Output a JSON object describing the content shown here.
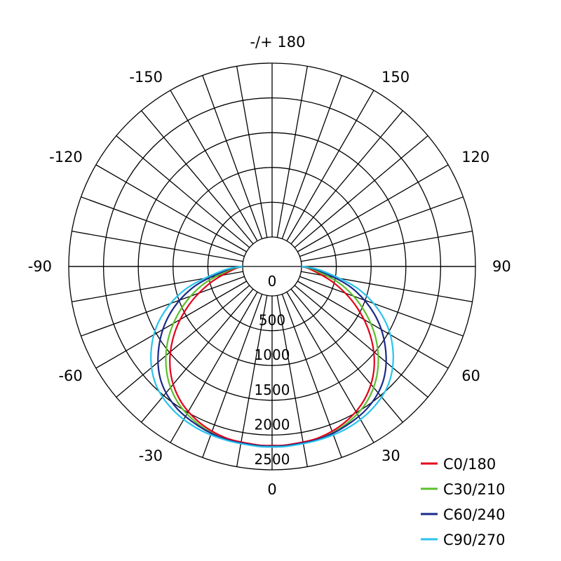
{
  "chart_data": {
    "type": "polar",
    "max_intensity": 2500,
    "grid": true,
    "legend_position": "bottom-right",
    "radial_rings": [
      500,
      1000,
      1500,
      2000,
      2500
    ],
    "radial_tick_labels": [
      "0",
      "500",
      "1000",
      "1500",
      "2000",
      "2500"
    ],
    "angle_labels": [
      {
        "angle": 0,
        "text": "0"
      },
      {
        "angle": 30,
        "text": "30"
      },
      {
        "angle": 60,
        "text": "60"
      },
      {
        "angle": 90,
        "text": "90"
      },
      {
        "angle": 120,
        "text": "120"
      },
      {
        "angle": 150,
        "text": "150"
      },
      {
        "angle": 180,
        "text": "-/+ 180"
      },
      {
        "angle": -150,
        "text": "-150"
      },
      {
        "angle": -120,
        "text": "-120"
      },
      {
        "angle": -90,
        "text": "-90"
      },
      {
        "angle": -60,
        "text": "-60"
      },
      {
        "angle": -30,
        "text": "-30"
      }
    ],
    "angles": [
      -90,
      -85,
      -75,
      -65,
      -55,
      -45,
      -35,
      -25,
      -15,
      -5,
      0,
      5,
      15,
      25,
      35,
      45,
      55,
      65,
      75,
      85,
      90
    ],
    "series": [
      {
        "name": "C0/180",
        "color": "#e3001b",
        "values": [
          0,
          150,
          500,
          900,
          1300,
          1650,
          1900,
          2050,
          2130,
          2150,
          2150,
          2150,
          2130,
          2050,
          1900,
          1650,
          1300,
          900,
          500,
          150,
          0
        ]
      },
      {
        "name": "C30/210",
        "color": "#5bbf2c",
        "values": [
          0,
          200,
          620,
          1020,
          1400,
          1720,
          1950,
          2080,
          2150,
          2160,
          2160,
          2160,
          2150,
          2080,
          1950,
          1720,
          1400,
          1020,
          620,
          200,
          0
        ]
      },
      {
        "name": "C60/240",
        "color": "#1a2a8a",
        "values": [
          0,
          250,
          760,
          1200,
          1560,
          1850,
          2020,
          2100,
          2150,
          2160,
          2160,
          2160,
          2150,
          2100,
          2020,
          1850,
          1560,
          1200,
          760,
          250,
          0
        ]
      },
      {
        "name": "C90/270",
        "color": "#2ac3ee",
        "values": [
          0,
          300,
          880,
          1350,
          1700,
          1950,
          2080,
          2140,
          2160,
          2170,
          2170,
          2170,
          2160,
          2140,
          2080,
          1950,
          1700,
          1350,
          880,
          300,
          0
        ]
      }
    ]
  }
}
